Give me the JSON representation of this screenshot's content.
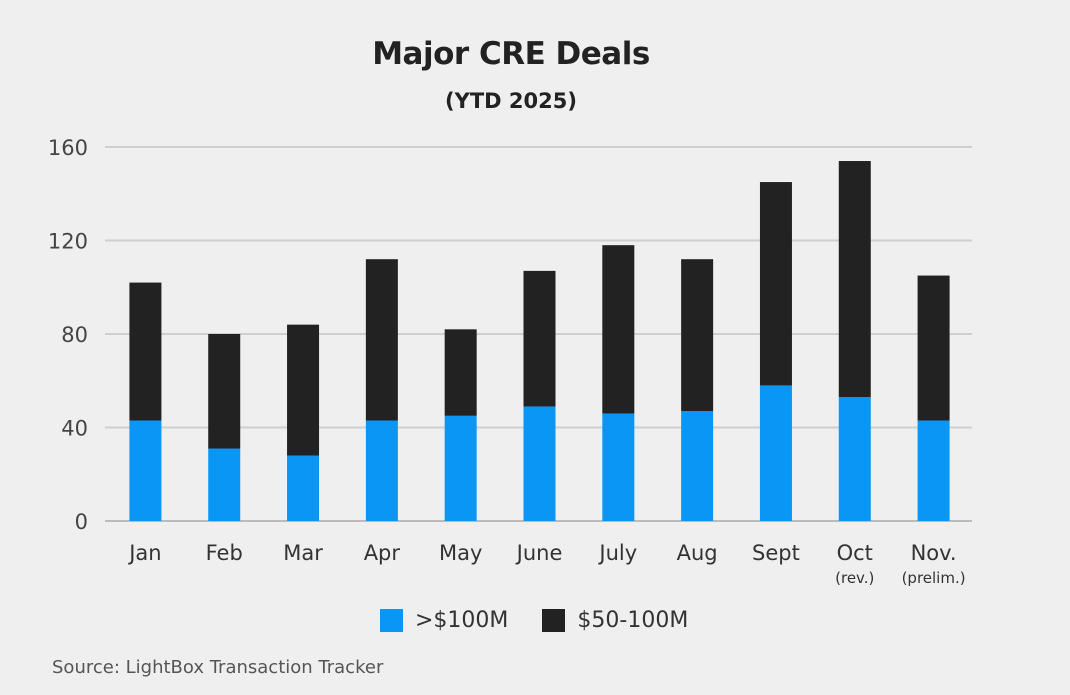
{
  "chart_data": {
    "type": "bar",
    "stacked": true,
    "title": "Major CRE Deals",
    "subtitle": "(YTD 2025)",
    "categories": [
      "Jan",
      "Feb",
      "Mar",
      "Apr",
      "May",
      "June",
      "July",
      "Aug",
      "Sept",
      "Oct",
      "Nov."
    ],
    "category_notes": [
      "",
      "",
      "",
      "",
      "",
      "",
      "",
      "",
      "",
      "(rev.)",
      "(prelim.)"
    ],
    "series": [
      {
        "name": ">$100M",
        "color": "#0a96f4",
        "values": [
          43,
          31,
          28,
          43,
          45,
          49,
          46,
          47,
          58,
          53,
          43
        ]
      },
      {
        "name": "$50-100M",
        "color": "#222222",
        "values": [
          59,
          49,
          56,
          69,
          37,
          58,
          72,
          65,
          87,
          101,
          62
        ]
      }
    ],
    "ylim": [
      0,
      160
    ],
    "yticks": [
      0,
      40,
      80,
      120,
      160
    ],
    "grid": true,
    "legend": "bottom",
    "source": "Source: LightBox Transaction Tracker"
  }
}
